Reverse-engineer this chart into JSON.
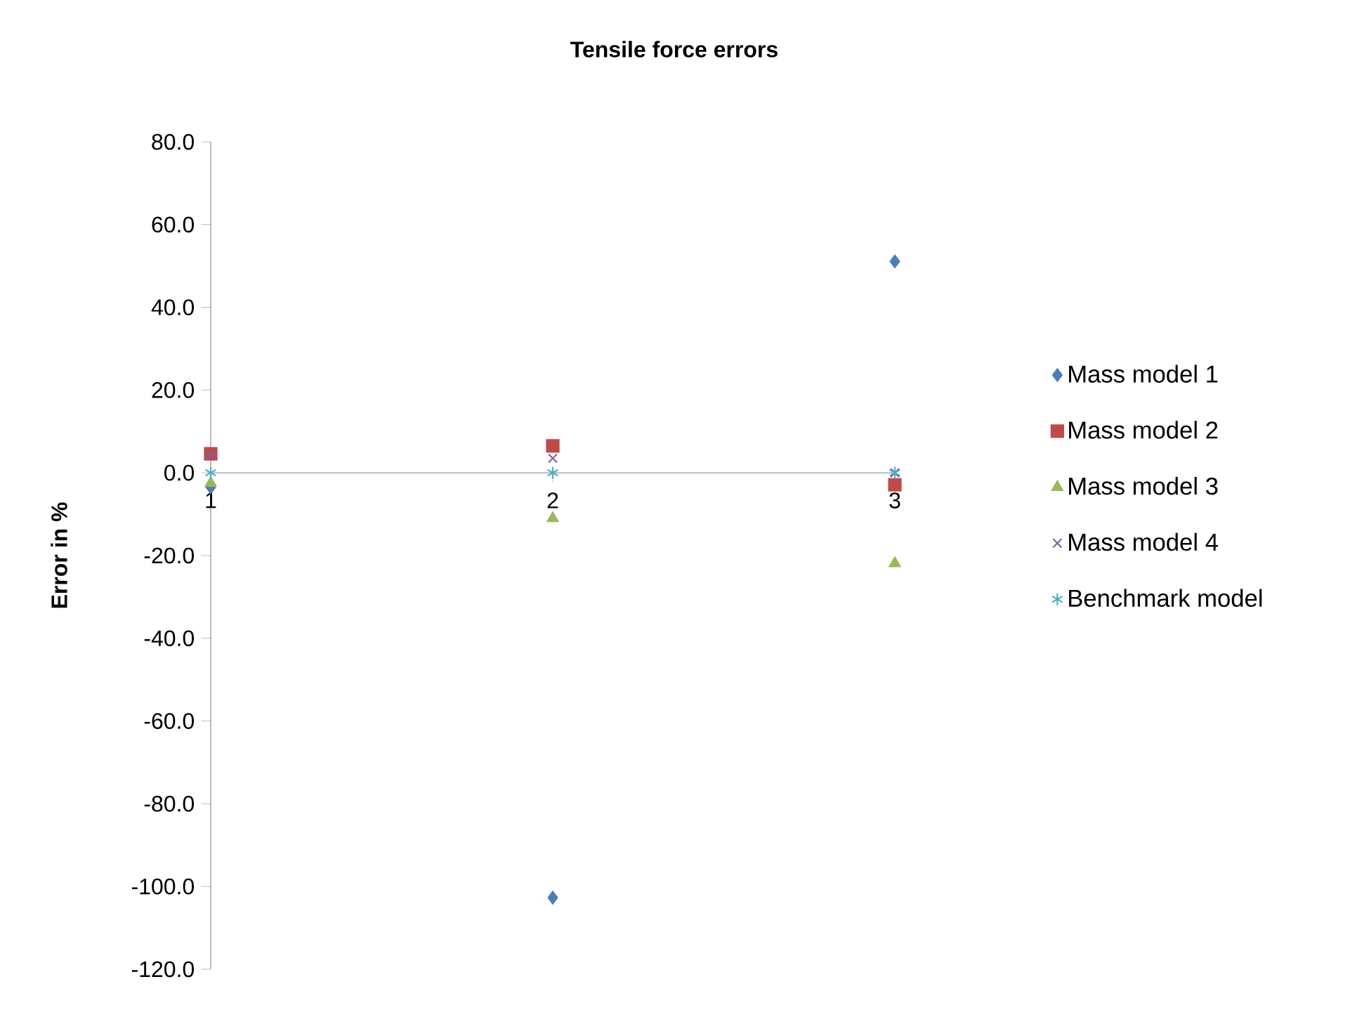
{
  "chart_data": {
    "type": "scatter",
    "title": "Tensile force errors",
    "ylabel": "Error in %",
    "x": [
      1,
      2,
      3
    ],
    "xlim": [
      1,
      3
    ],
    "xticks": [
      1,
      2,
      3
    ],
    "ylim": [
      -120,
      80
    ],
    "yticks": [
      {
        "value": -120,
        "label": "-120.0"
      },
      {
        "value": -100,
        "label": "-100.0"
      },
      {
        "value": -80,
        "label": "-80.0"
      },
      {
        "value": -60,
        "label": "-60.0"
      },
      {
        "value": -40,
        "label": "-40.0"
      },
      {
        "value": -20,
        "label": "-20.0"
      },
      {
        "value": 0,
        "label": "0.0"
      },
      {
        "value": 20,
        "label": "20.0"
      },
      {
        "value": 40,
        "label": "40.0"
      },
      {
        "value": 60,
        "label": "60.0"
      },
      {
        "value": 80,
        "label": "80.0"
      }
    ],
    "grid": false,
    "legend": "right",
    "series": [
      {
        "name": "Mass model 1",
        "color": "#4a7ebb",
        "marker": "diamond",
        "values": [
          -3.5,
          -102.7,
          51.1
        ]
      },
      {
        "name": "Mass model 2",
        "color": "#be4b48",
        "marker": "square",
        "values": [
          4.6,
          6.5,
          -2.9
        ]
      },
      {
        "name": "Mass model 3",
        "color": "#98b954",
        "marker": "triangle",
        "values": [
          -2.5,
          -11,
          -21.9
        ]
      },
      {
        "name": "Mass model 4",
        "color": "#7d60a0",
        "marker": "cross",
        "values": [
          4.3,
          3.5,
          0
        ]
      },
      {
        "name": "Benchmark model",
        "color": "#4bacc6",
        "values": [
          0,
          0,
          0
        ]
      }
    ]
  }
}
